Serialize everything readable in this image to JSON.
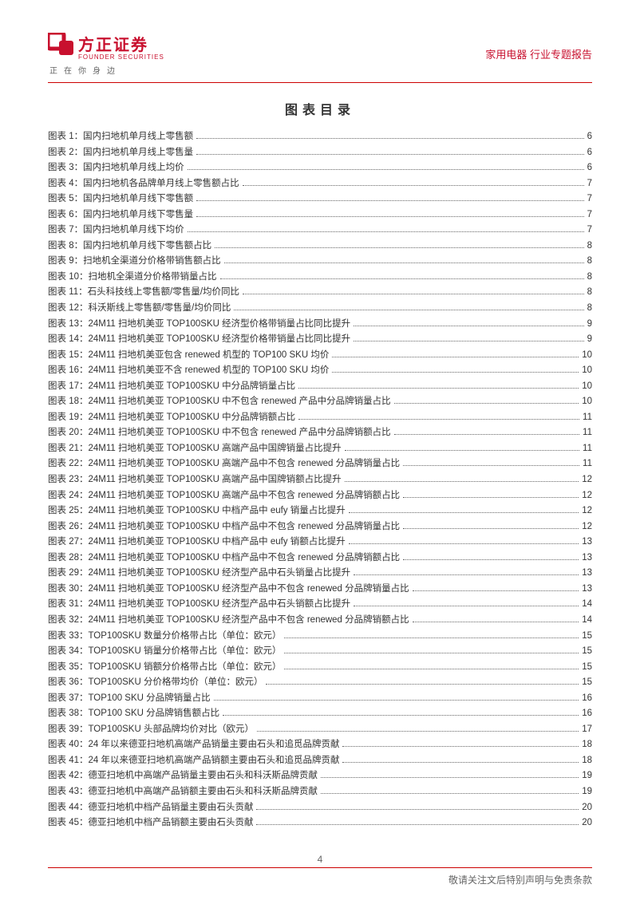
{
  "header": {
    "logo_cn": "方正证券",
    "logo_en": "FOUNDER SECURITIES",
    "tagline": "正在你身边",
    "right_text": "家用电器 行业专题报告",
    "accent_color": "#c8102e"
  },
  "toc": {
    "title": "图表目录",
    "entries": [
      {
        "label": "图表 1：国内扫地机单月线上零售额",
        "page": "6"
      },
      {
        "label": "图表 2：国内扫地机单月线上零售量",
        "page": "6"
      },
      {
        "label": "图表 3：国内扫地机单月线上均价",
        "page": "6"
      },
      {
        "label": "图表 4：国内扫地机各品牌单月线上零售额占比",
        "page": "7"
      },
      {
        "label": "图表 5：国内扫地机单月线下零售额",
        "page": "7"
      },
      {
        "label": "图表 6：国内扫地机单月线下零售量",
        "page": "7"
      },
      {
        "label": "图表 7：国内扫地机单月线下均价",
        "page": "7"
      },
      {
        "label": "图表 8：国内扫地机单月线下零售额占比",
        "page": "8"
      },
      {
        "label": "图表 9：扫地机全渠道分价格带销售额占比",
        "page": "8"
      },
      {
        "label": "图表 10：扫地机全渠道分价格带销量占比",
        "page": "8"
      },
      {
        "label": "图表 11：石头科技线上零售额/零售量/均价同比",
        "page": "8"
      },
      {
        "label": "图表 12：科沃斯线上零售额/零售量/均价同比",
        "page": "8"
      },
      {
        "label": "图表 13：24M11 扫地机美亚 TOP100SKU 经济型价格带销量占比同比提升",
        "page": "9"
      },
      {
        "label": "图表 14：24M11 扫地机美亚 TOP100SKU 经济型价格带销量占比同比提升",
        "page": "9"
      },
      {
        "label": "图表 15：24M11 扫地机美亚包含 renewed 机型的 TOP100 SKU 均价",
        "page": "10"
      },
      {
        "label": "图表 16：24M11 扫地机美亚不含 renewed 机型的 TOP100 SKU 均价",
        "page": "10"
      },
      {
        "label": "图表 17：24M11 扫地机美亚 TOP100SKU 中分品牌销量占比",
        "page": "10"
      },
      {
        "label": "图表 18：24M11 扫地机美亚 TOP100SKU 中不包含 renewed 产品中分品牌销量占比",
        "page": "10"
      },
      {
        "label": "图表 19：24M11 扫地机美亚 TOP100SKU 中分品牌销额占比",
        "page": "11"
      },
      {
        "label": "图表 20：24M11 扫地机美亚 TOP100SKU 中不包含 renewed 产品中分品牌销额占比",
        "page": "11"
      },
      {
        "label": "图表 21：24M11 扫地机美亚 TOP100SKU 高端产品中国牌销量占比提升",
        "page": "11"
      },
      {
        "label": "图表 22：24M11 扫地机美亚 TOP100SKU 高端产品中不包含 renewed 分品牌销量占比",
        "page": "11"
      },
      {
        "label": "图表 23：24M11 扫地机美亚 TOP100SKU 高端产品中国牌销额占比提升",
        "page": "12"
      },
      {
        "label": "图表 24：24M11 扫地机美亚 TOP100SKU 高端产品中不包含 renewed 分品牌销额占比",
        "page": "12"
      },
      {
        "label": "图表 25：24M11 扫地机美亚 TOP100SKU 中档产品中 eufy 销量占比提升",
        "page": "12"
      },
      {
        "label": "图表 26：24M11 扫地机美亚 TOP100SKU 中档产品中不包含 renewed 分品牌销量占比",
        "page": "12"
      },
      {
        "label": "图表 27：24M11 扫地机美亚 TOP100SKU 中档产品中 eufy 销额占比提升",
        "page": "13"
      },
      {
        "label": "图表 28：24M11 扫地机美亚 TOP100SKU 中档产品中不包含 renewed 分品牌销额占比",
        "page": "13"
      },
      {
        "label": "图表 29：24M11 扫地机美亚 TOP100SKU 经济型产品中石头销量占比提升",
        "page": "13"
      },
      {
        "label": "图表 30：24M11 扫地机美亚 TOP100SKU 经济型产品中不包含 renewed 分品牌销量占比",
        "page": "13"
      },
      {
        "label": "图表 31：24M11 扫地机美亚 TOP100SKU 经济型产品中石头销额占比提升",
        "page": "14"
      },
      {
        "label": "图表 32：24M11 扫地机美亚 TOP100SKU 经济型产品中不包含 renewed 分品牌销额占比",
        "page": "14"
      },
      {
        "label": "图表 33：TOP100SKU 数量分价格带占比（单位：欧元）",
        "page": "15"
      },
      {
        "label": "图表 34：TOP100SKU 销量分价格带占比（单位：欧元）",
        "page": "15"
      },
      {
        "label": "图表 35：TOP100SKU 销额分价格带占比（单位：欧元）",
        "page": "15"
      },
      {
        "label": "图表 36：TOP100SKU 分价格带均价（单位：欧元）",
        "page": "15"
      },
      {
        "label": "图表 37：TOP100 SKU 分品牌销量占比",
        "page": "16"
      },
      {
        "label": "图表 38：TOP100 SKU 分品牌销售额占比",
        "page": "16"
      },
      {
        "label": "图表 39：TOP100SKU 头部品牌均价对比（欧元）",
        "page": "17"
      },
      {
        "label": "图表 40：24 年以来德亚扫地机高端产品销量主要由石头和追觅品牌贡献",
        "page": "18"
      },
      {
        "label": "图表 41：24 年以来德亚扫地机高端产品销额主要由石头和追觅品牌贡献",
        "page": "18"
      },
      {
        "label": "图表 42：德亚扫地机中高端产品销量主要由石头和科沃斯品牌贡献",
        "page": "19"
      },
      {
        "label": "图表 43：德亚扫地机中高端产品销额主要由石头和科沃斯品牌贡献",
        "page": "19"
      },
      {
        "label": "图表 44：德亚扫地机中档产品销量主要由石头贡献",
        "page": "20"
      },
      {
        "label": "图表 45：德亚扫地机中档产品销额主要由石头贡献",
        "page": "20"
      }
    ]
  },
  "footer": {
    "page_number": "4",
    "disclaimer": "敬请关注文后特别声明与免责条款"
  }
}
